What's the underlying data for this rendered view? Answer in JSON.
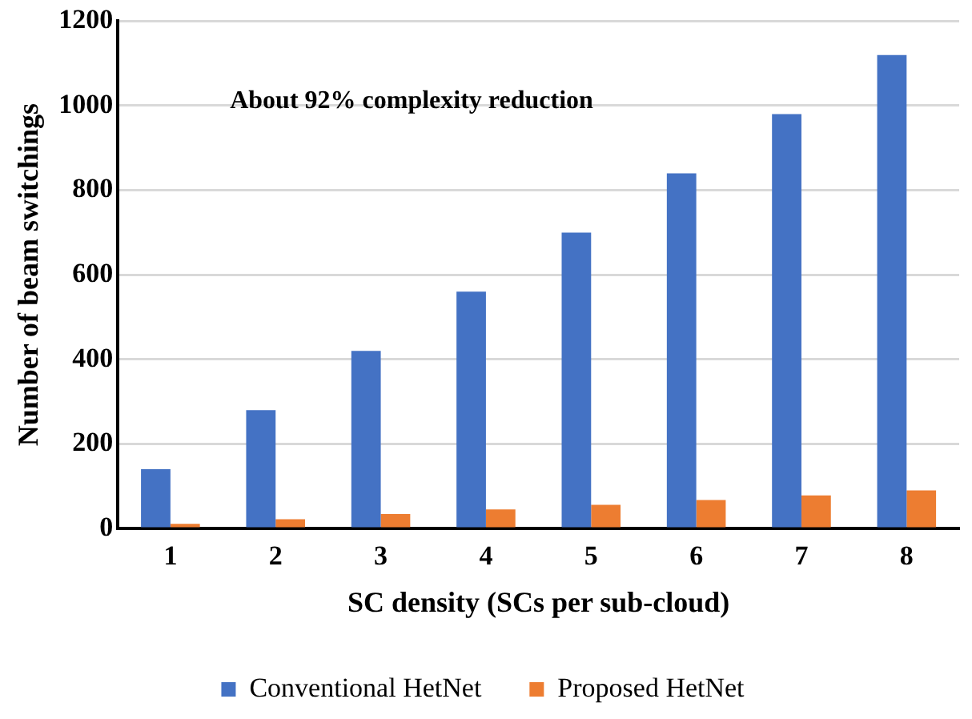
{
  "chart_data": {
    "type": "bar",
    "xlabel": "SC density (SCs per sub-cloud)",
    "ylabel": "Number of beam switchings",
    "categories": [
      "1",
      "2",
      "3",
      "4",
      "5",
      "6",
      "7",
      "8"
    ],
    "series": [
      {
        "name": "Conventional HetNet",
        "color": "#4472c4",
        "values": [
          140,
          280,
          420,
          560,
          700,
          840,
          980,
          1120
        ]
      },
      {
        "name": "Proposed HetNet",
        "color": "#ed7d31",
        "values": [
          11,
          22,
          34,
          45,
          56,
          67,
          78,
          90
        ]
      }
    ],
    "ylim": [
      0,
      1200
    ],
    "yticks": [
      0,
      200,
      400,
      600,
      800,
      1000,
      1200
    ],
    "grid": "y",
    "legend": "bottom",
    "annotations": [
      "About 92% complexity reduction"
    ]
  }
}
